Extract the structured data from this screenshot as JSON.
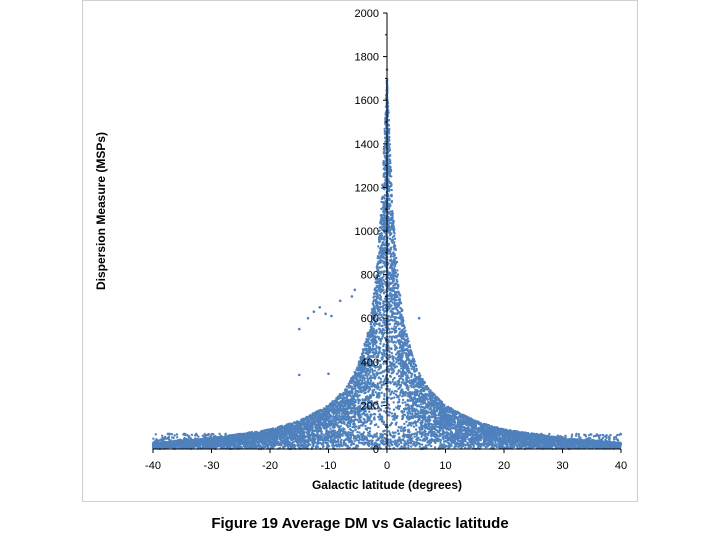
{
  "caption": "Figure 19 Average DM vs Galactic latitude",
  "chart_data": {
    "type": "scatter",
    "title": "",
    "xlabel": "Galactic latitude (degrees)",
    "ylabel": "Dispersion Measure (MSPs)",
    "xlim": [
      -40,
      40
    ],
    "ylim": [
      0,
      2000
    ],
    "xticks": [
      -40,
      -30,
      -20,
      -10,
      0,
      10,
      20,
      30,
      40
    ],
    "yticks": [
      0,
      200,
      400,
      600,
      800,
      1000,
      1200,
      1400,
      1600,
      1800,
      2000
    ],
    "grid": false,
    "legend": "none",
    "marker_color": "#4f81bd",
    "envelope": {
      "description_points": [
        {
          "x": -40,
          "y": 30
        },
        {
          "x": -30,
          "y": 50
        },
        {
          "x": -20,
          "y": 90
        },
        {
          "x": -15,
          "y": 130
        },
        {
          "x": -10,
          "y": 200
        },
        {
          "x": -7,
          "y": 280
        },
        {
          "x": -5,
          "y": 380
        },
        {
          "x": -3,
          "y": 560
        },
        {
          "x": -2,
          "y": 760
        },
        {
          "x": -1,
          "y": 1100
        },
        {
          "x": 0,
          "y": 1720
        },
        {
          "x": 1,
          "y": 1100
        },
        {
          "x": 2,
          "y": 760
        },
        {
          "x": 3,
          "y": 560
        },
        {
          "x": 5,
          "y": 380
        },
        {
          "x": 7,
          "y": 280
        },
        {
          "x": 10,
          "y": 200
        },
        {
          "x": 15,
          "y": 130
        },
        {
          "x": 20,
          "y": 90
        },
        {
          "x": 30,
          "y": 50
        },
        {
          "x": 40,
          "y": 30
        }
      ]
    },
    "outliers": [
      {
        "x": -15,
        "y": 550
      },
      {
        "x": -13.5,
        "y": 600
      },
      {
        "x": -12.5,
        "y": 630
      },
      {
        "x": -11.5,
        "y": 650
      },
      {
        "x": -10.5,
        "y": 620
      },
      {
        "x": -9.5,
        "y": 610
      },
      {
        "x": -8,
        "y": 680
      },
      {
        "x": -6,
        "y": 700
      },
      {
        "x": -5.5,
        "y": 730
      },
      {
        "x": -15,
        "y": 340
      },
      {
        "x": -10,
        "y": 345
      },
      {
        "x": 5.5,
        "y": 600
      },
      {
        "x": 0,
        "y": 1740
      },
      {
        "x": -38,
        "y": 50
      },
      {
        "x": 38,
        "y": 45
      }
    ]
  }
}
